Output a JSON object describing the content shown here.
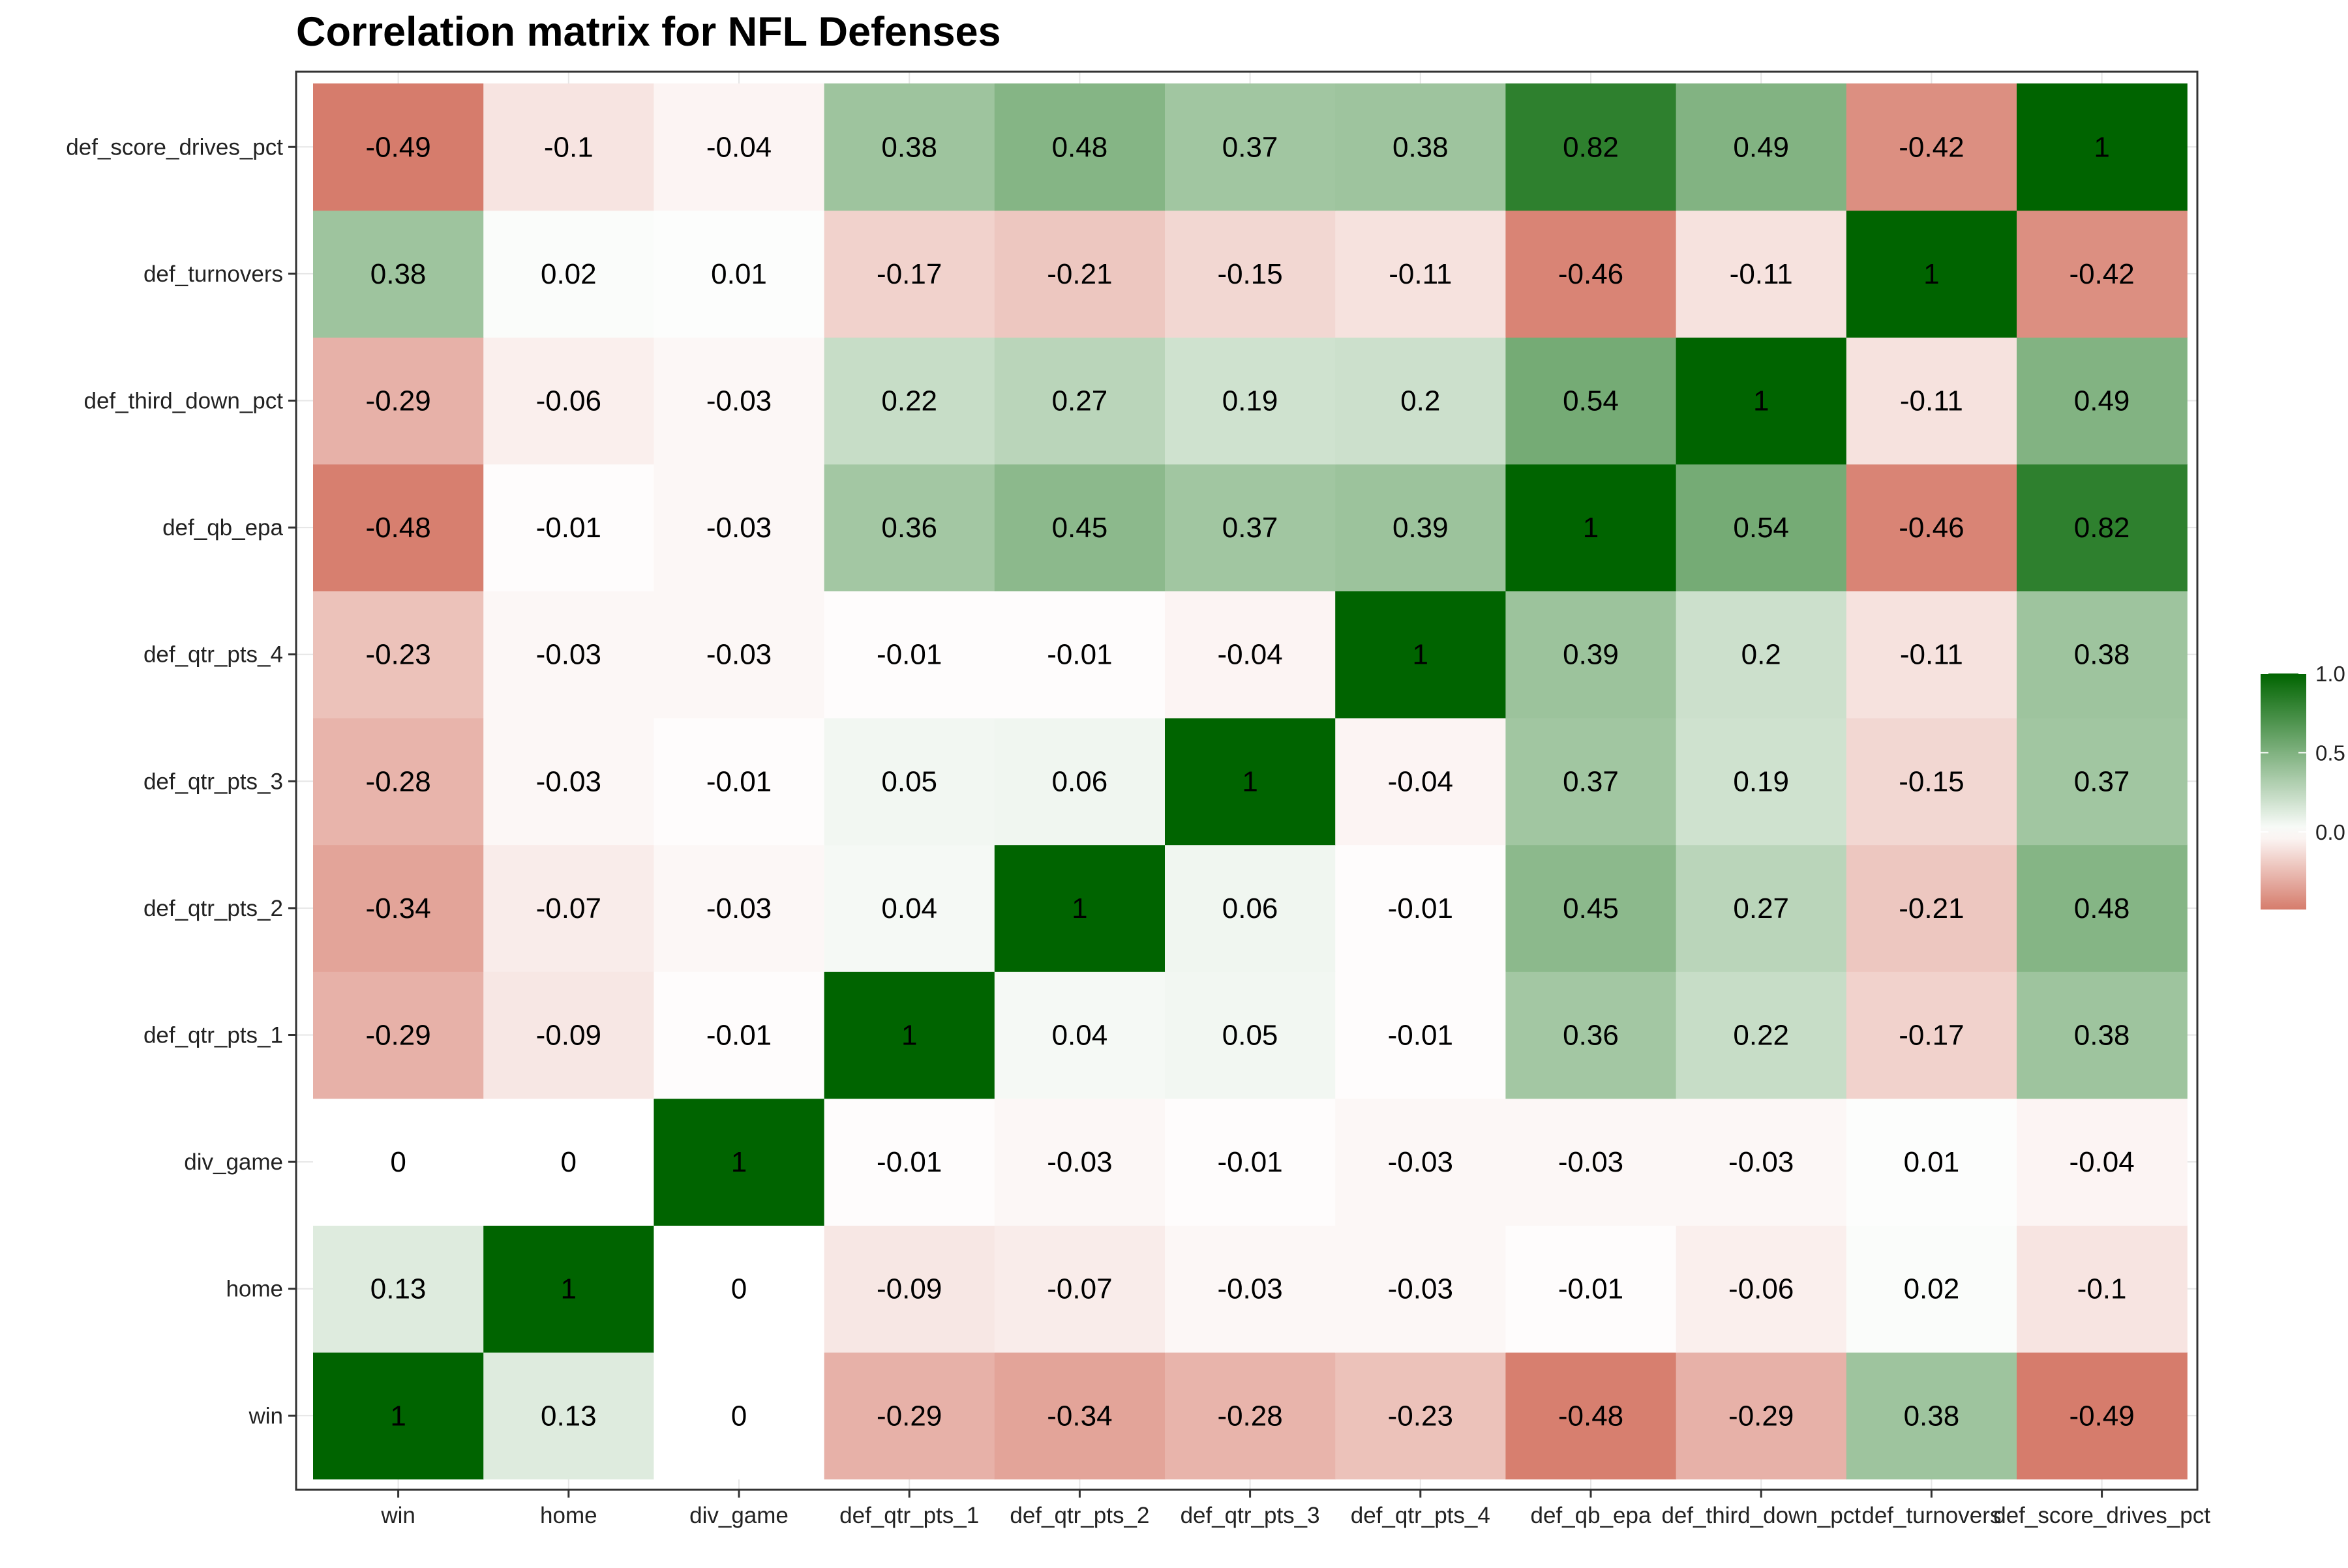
{
  "chart_data": {
    "type": "heatmap",
    "title": "Correlation matrix for NFL Defenses",
    "xlabel": "",
    "ylabel": "",
    "variables": [
      "win",
      "home",
      "div_game",
      "def_qtr_pts_1",
      "def_qtr_pts_2",
      "def_qtr_pts_3",
      "def_qtr_pts_4",
      "def_qb_epa",
      "def_third_down_pct",
      "def_turnovers",
      "def_score_drives_pct"
    ],
    "x_categories": [
      "win",
      "home",
      "div_game",
      "def_qtr_pts_1",
      "def_qtr_pts_2",
      "def_qtr_pts_3",
      "def_qtr_pts_4",
      "def_qb_epa",
      "def_third_down_pct",
      "def_turnovers",
      "def_score_drives_pct"
    ],
    "y_categories_bottom_to_top": [
      "win",
      "home",
      "div_game",
      "def_qtr_pts_1",
      "def_qtr_pts_2",
      "def_qtr_pts_3",
      "def_qtr_pts_4",
      "def_qb_epa",
      "def_third_down_pct",
      "def_turnovers",
      "def_score_drives_pct"
    ],
    "matrix": [
      [
        1,
        0.13,
        0,
        -0.29,
        -0.34,
        -0.28,
        -0.23,
        -0.48,
        -0.29,
        0.38,
        -0.49
      ],
      [
        0.13,
        1,
        0,
        -0.09,
        -0.07,
        -0.03,
        -0.03,
        -0.01,
        -0.06,
        0.02,
        -0.1
      ],
      [
        0,
        0,
        1,
        -0.01,
        -0.03,
        -0.01,
        -0.03,
        -0.03,
        -0.03,
        0.01,
        -0.04
      ],
      [
        -0.29,
        -0.09,
        -0.01,
        1,
        0.04,
        0.05,
        -0.01,
        0.36,
        0.22,
        -0.17,
        0.38
      ],
      [
        -0.34,
        -0.07,
        -0.03,
        0.04,
        1,
        0.06,
        -0.01,
        0.45,
        0.27,
        -0.21,
        0.48
      ],
      [
        -0.28,
        -0.03,
        -0.01,
        0.05,
        0.06,
        1,
        -0.04,
        0.37,
        0.19,
        -0.15,
        0.37
      ],
      [
        -0.23,
        -0.03,
        -0.03,
        -0.01,
        -0.01,
        -0.04,
        1,
        0.39,
        0.2,
        -0.11,
        0.38
      ],
      [
        -0.48,
        -0.01,
        -0.03,
        0.36,
        0.45,
        0.37,
        0.39,
        1,
        0.54,
        -0.46,
        0.82
      ],
      [
        -0.29,
        -0.06,
        -0.03,
        0.22,
        0.27,
        0.19,
        0.2,
        0.54,
        1,
        -0.11,
        0.49
      ],
      [
        0.38,
        0.02,
        0.01,
        -0.17,
        -0.21,
        -0.15,
        -0.11,
        -0.46,
        -0.11,
        1,
        -0.42
      ],
      [
        -0.49,
        -0.1,
        -0.04,
        0.38,
        0.48,
        0.37,
        0.38,
        0.82,
        0.49,
        -0.42,
        1
      ]
    ],
    "legend": {
      "position": "right",
      "ticks": [
        "1.0",
        "0.5",
        "0.0"
      ],
      "tick_values": [
        1.0,
        0.5,
        0.0
      ],
      "range": [
        -0.49,
        1.0
      ]
    },
    "colors": {
      "high": "#006400",
      "mid": "#ffffff",
      "low": "#d67c6c"
    },
    "grid": true
  }
}
